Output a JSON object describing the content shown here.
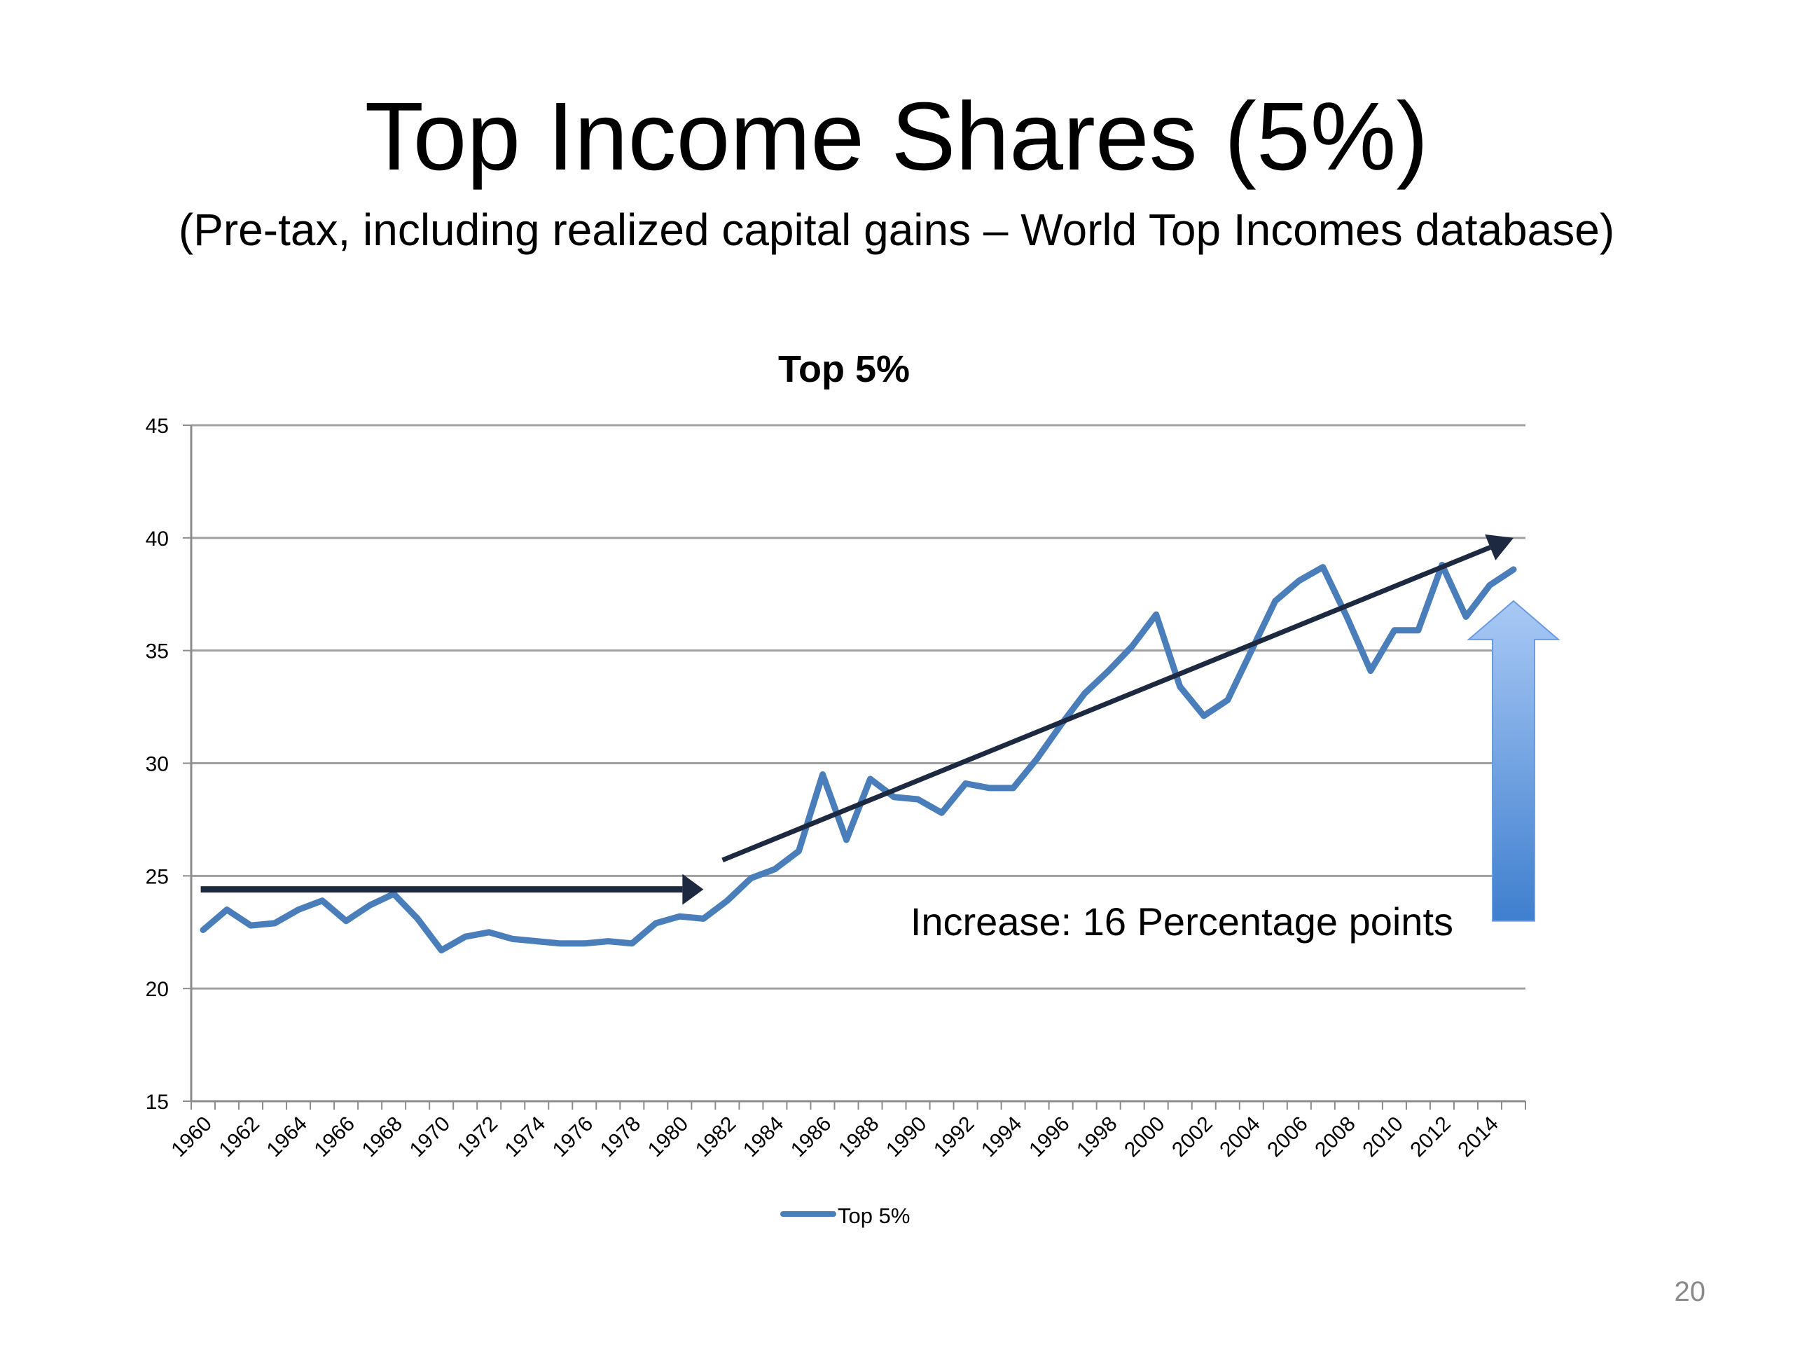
{
  "slide": {
    "title": "Top Income Shares (5%)",
    "subtitle": "(Pre-tax, including realized capital gains – World Top Incomes database)",
    "page_number": "20"
  },
  "chart_data": {
    "type": "line",
    "title": "Top 5%",
    "xlabel": "",
    "ylabel": "",
    "ylim": [
      15,
      45
    ],
    "yticks": [
      15,
      20,
      25,
      30,
      35,
      40,
      45
    ],
    "grid": true,
    "legend_position": "bottom",
    "x": [
      1960,
      1961,
      1962,
      1963,
      1964,
      1965,
      1966,
      1967,
      1968,
      1969,
      1970,
      1971,
      1972,
      1973,
      1974,
      1975,
      1976,
      1977,
      1978,
      1979,
      1980,
      1981,
      1982,
      1983,
      1984,
      1985,
      1986,
      1987,
      1988,
      1989,
      1990,
      1991,
      1992,
      1993,
      1994,
      1995,
      1996,
      1997,
      1998,
      1999,
      2000,
      2001,
      2002,
      2003,
      2004,
      2005,
      2006,
      2007,
      2008,
      2009,
      2010,
      2011,
      2012,
      2013,
      2014,
      2015
    ],
    "x_tick_labels": [
      "1960",
      "1962",
      "1964",
      "1966",
      "1968",
      "1970",
      "1972",
      "1974",
      "1976",
      "1978",
      "1980",
      "1982",
      "1984",
      "1986",
      "1988",
      "1990",
      "1992",
      "1994",
      "1996",
      "1998",
      "2000",
      "2002",
      "2004",
      "2006",
      "2008",
      "2010",
      "2012",
      "2014"
    ],
    "series": [
      {
        "name": "Top 5%",
        "color": "#4a7ebb",
        "values": [
          22.6,
          23.5,
          22.8,
          22.9,
          23.5,
          23.9,
          23.0,
          23.7,
          24.2,
          23.1,
          21.7,
          22.3,
          22.5,
          22.2,
          22.1,
          22.0,
          22.0,
          22.1,
          22.0,
          22.9,
          23.2,
          23.1,
          23.9,
          24.9,
          25.3,
          26.1,
          29.5,
          26.6,
          29.3,
          28.5,
          28.4,
          27.8,
          29.1,
          28.9,
          28.9,
          30.2,
          31.7,
          33.1,
          34.1,
          35.2,
          36.6,
          33.4,
          32.1,
          32.8,
          35.0,
          37.2,
          38.1,
          38.7,
          36.5,
          34.1,
          35.9,
          35.9,
          38.8,
          36.5,
          37.9,
          38.6
        ]
      }
    ],
    "annotations": {
      "text": "Increase: 16 Percentage points",
      "flat_arrow": {
        "from": [
          1960.4,
          24.4
        ],
        "to": [
          1981.5,
          24.4
        ],
        "color": "#1c2940"
      },
      "trend_arrow": {
        "from": [
          1982.3,
          25.7
        ],
        "to": [
          2015.5,
          40.0
        ],
        "color": "#1c2940"
      },
      "up_arrow": {
        "x": 2015,
        "from": 23.0,
        "to": 37.2,
        "color": "#4a86cf"
      }
    }
  }
}
